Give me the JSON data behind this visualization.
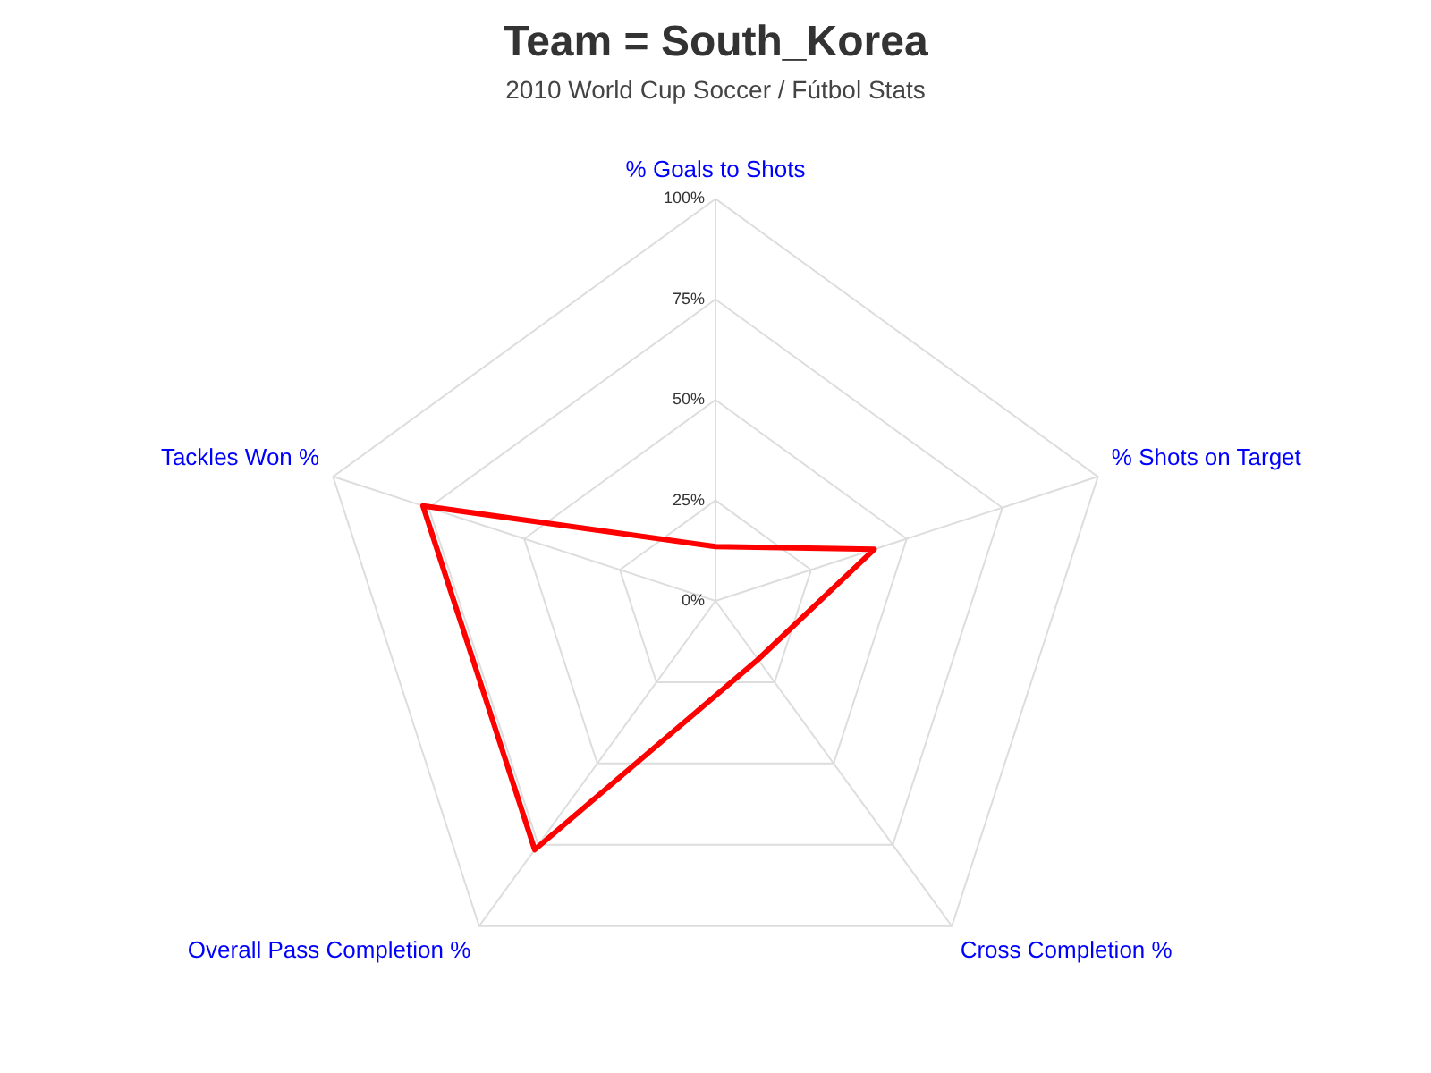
{
  "chart_data": {
    "type": "radar",
    "title": "Team = South_Korea",
    "subtitle": "2010 World Cup Soccer / Fútbol Stats",
    "categories": [
      "% Goals to Shots",
      "% Shots on Target",
      "Cross Completion %",
      "Overall Pass Completion %",
      "Tackles Won %"
    ],
    "series": [
      {
        "color": "#ff0000",
        "values": [
          13.5,
          41.5,
          18,
          76.5,
          76.5
        ]
      }
    ],
    "ylim": [
      0,
      100
    ],
    "yticks": [
      {
        "value": 0,
        "label": "0%"
      },
      {
        "value": 25,
        "label": "25%"
      },
      {
        "value": 50,
        "label": "50%"
      },
      {
        "value": 75,
        "label": "75%"
      },
      {
        "value": 100,
        "label": "100%"
      }
    ],
    "grid": true,
    "marker": "none"
  }
}
